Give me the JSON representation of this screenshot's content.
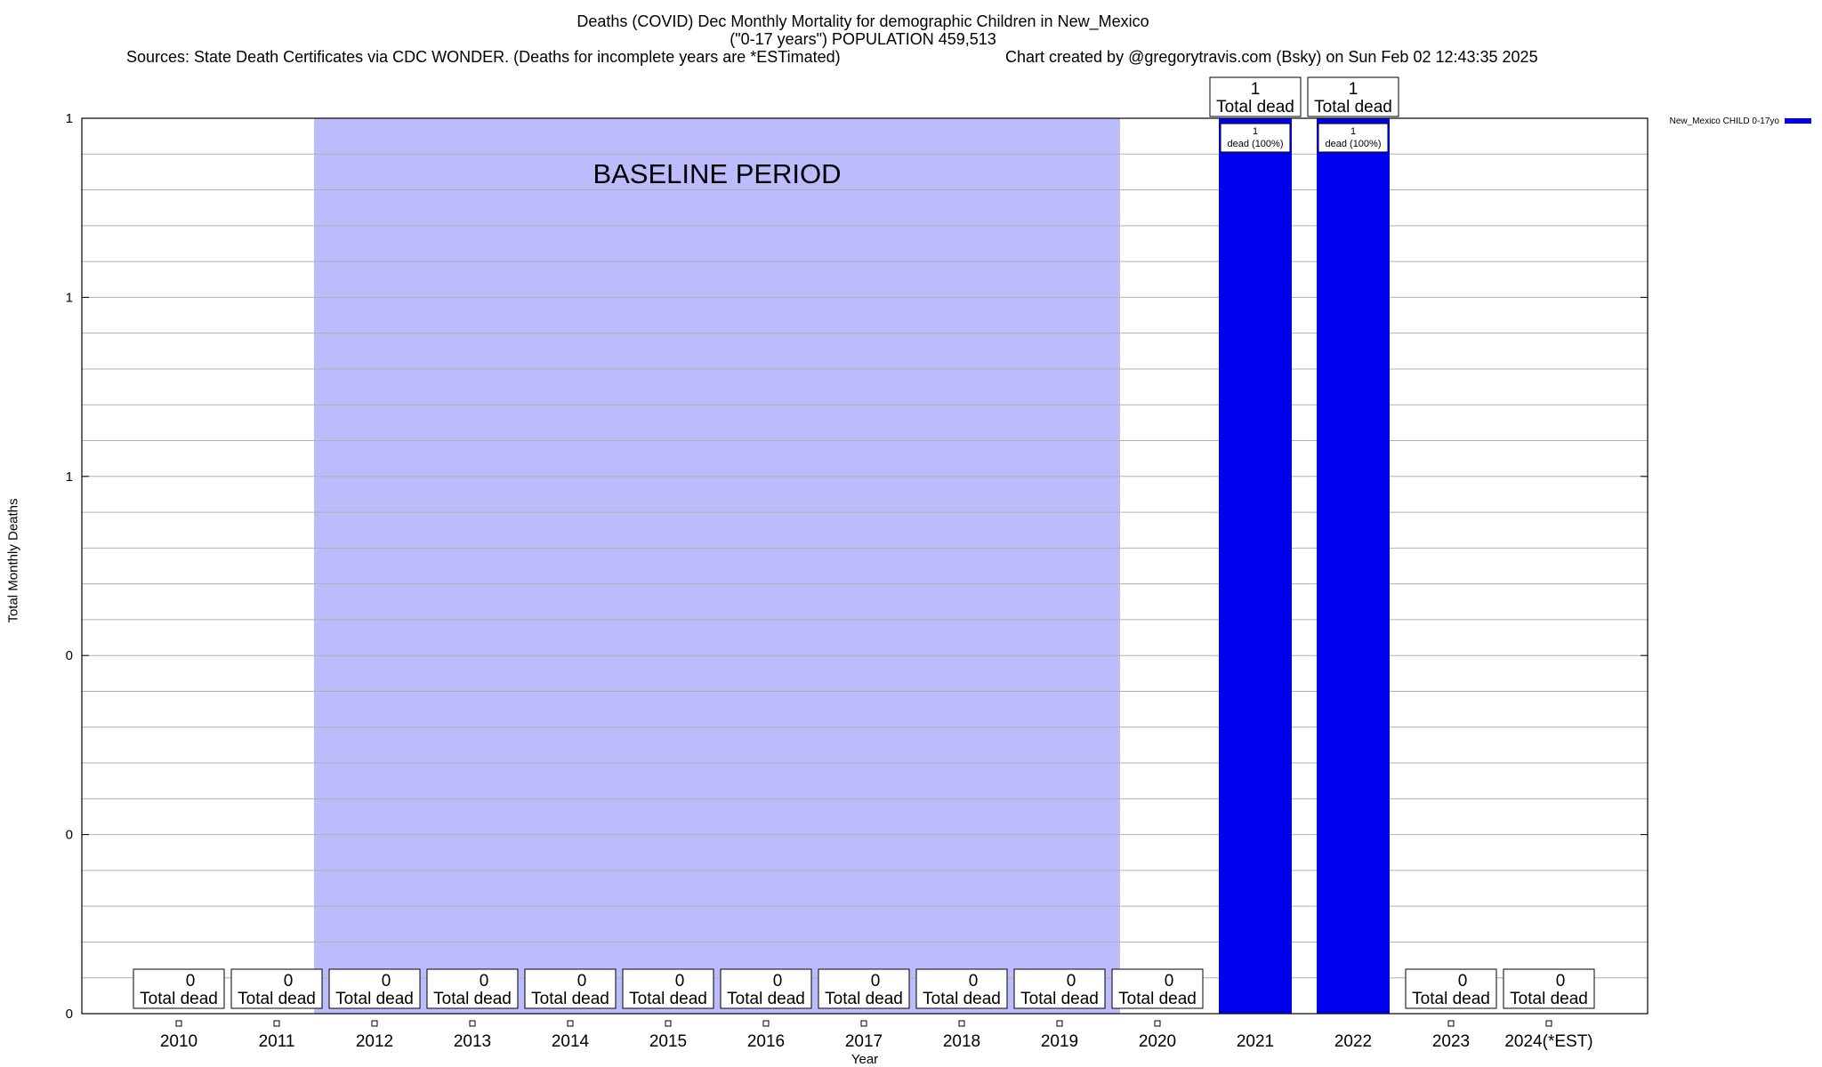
{
  "chart_data": {
    "type": "bar",
    "title": "Deaths (COVID) Dec Monthly Mortality for demographic Children in New_Mexico",
    "subtitle": "(\"0-17 years\") POPULATION 459,513",
    "sources": "Sources: State Death Certificates via CDC WONDER. (Deaths for incomplete years are *ESTimated)",
    "credit": "Chart created by @gregorytravis.com (Bsky) on Sun Feb 02 12:43:35 2025",
    "xlabel": "Year",
    "ylabel": "Total Monthly Deaths",
    "categories": [
      "2010",
      "2011",
      "2012",
      "2013",
      "2014",
      "2015",
      "2016",
      "2017",
      "2018",
      "2019",
      "2020",
      "2021",
      "2022",
      "2023",
      "2024(*EST)"
    ],
    "series": [
      {
        "name": "New_Mexico CHILD 0-17yo",
        "color": "#0000ee",
        "values": [
          0,
          0,
          0,
          0,
          0,
          0,
          0,
          0,
          0,
          0,
          0,
          1,
          1,
          0,
          0
        ]
      }
    ],
    "ylim": [
      0,
      1
    ],
    "yticks": [
      0,
      0.2,
      0.4,
      0.6,
      0.8,
      1
    ],
    "ytick_labels": [
      "0",
      "0",
      "0",
      "1",
      "1",
      "1"
    ],
    "grid": true,
    "legend_position": "top-right",
    "total_label_text": "Total dead",
    "inner_label_text": "dead (100%)",
    "baseline": {
      "label": "BASELINE PERIOD",
      "start": "2012",
      "end": "2019",
      "color": "#bcbcfc"
    }
  }
}
